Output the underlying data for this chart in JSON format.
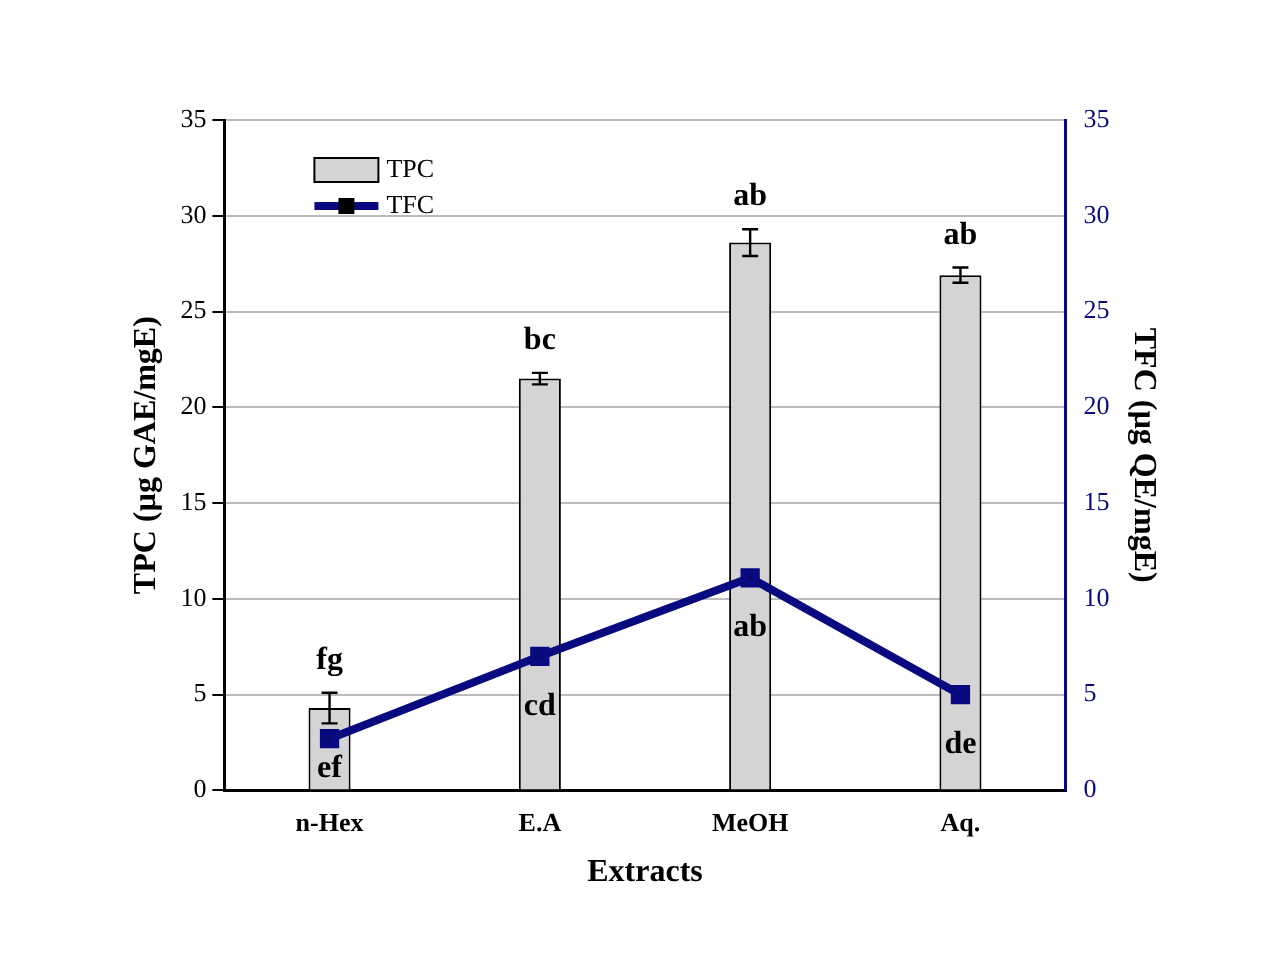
{
  "chart_data": {
    "type": "bar",
    "xlabel": "Extracts",
    "ylabel": "TPC (µg GAE/mgE)",
    "y2label": "TFC (µg QE/mgE)",
    "categories": [
      "n-Hex",
      "E.A",
      "MeOH",
      "Aq."
    ],
    "series": [
      {
        "name": "TPC",
        "color": "#d4d4d4",
        "values": [
          4.3,
          21.5,
          28.6,
          26.9
        ],
        "errors": [
          0.8,
          0.3,
          0.7,
          0.4
        ],
        "value_labels": [
          "fg",
          "bc",
          "ab",
          "ab"
        ]
      },
      {
        "name": "TFC",
        "type": "line",
        "axis": "y2",
        "color": "#0a0a80",
        "marker": "square",
        "values": [
          2.7,
          7.0,
          11.1,
          5.0
        ],
        "errors": [
          0.3,
          0.3,
          0.3,
          0.2
        ],
        "value_labels": [
          "ef",
          "cd",
          "ab",
          "de"
        ]
      }
    ],
    "ylim": [
      0,
      35
    ],
    "yticks": [
      0,
      5,
      10,
      15,
      20,
      25,
      30,
      35
    ],
    "y2lim": [
      0,
      35
    ],
    "y2ticks": [
      0,
      5,
      10,
      15,
      20,
      25,
      30,
      35
    ],
    "grid": "y",
    "legend": "top left"
  }
}
